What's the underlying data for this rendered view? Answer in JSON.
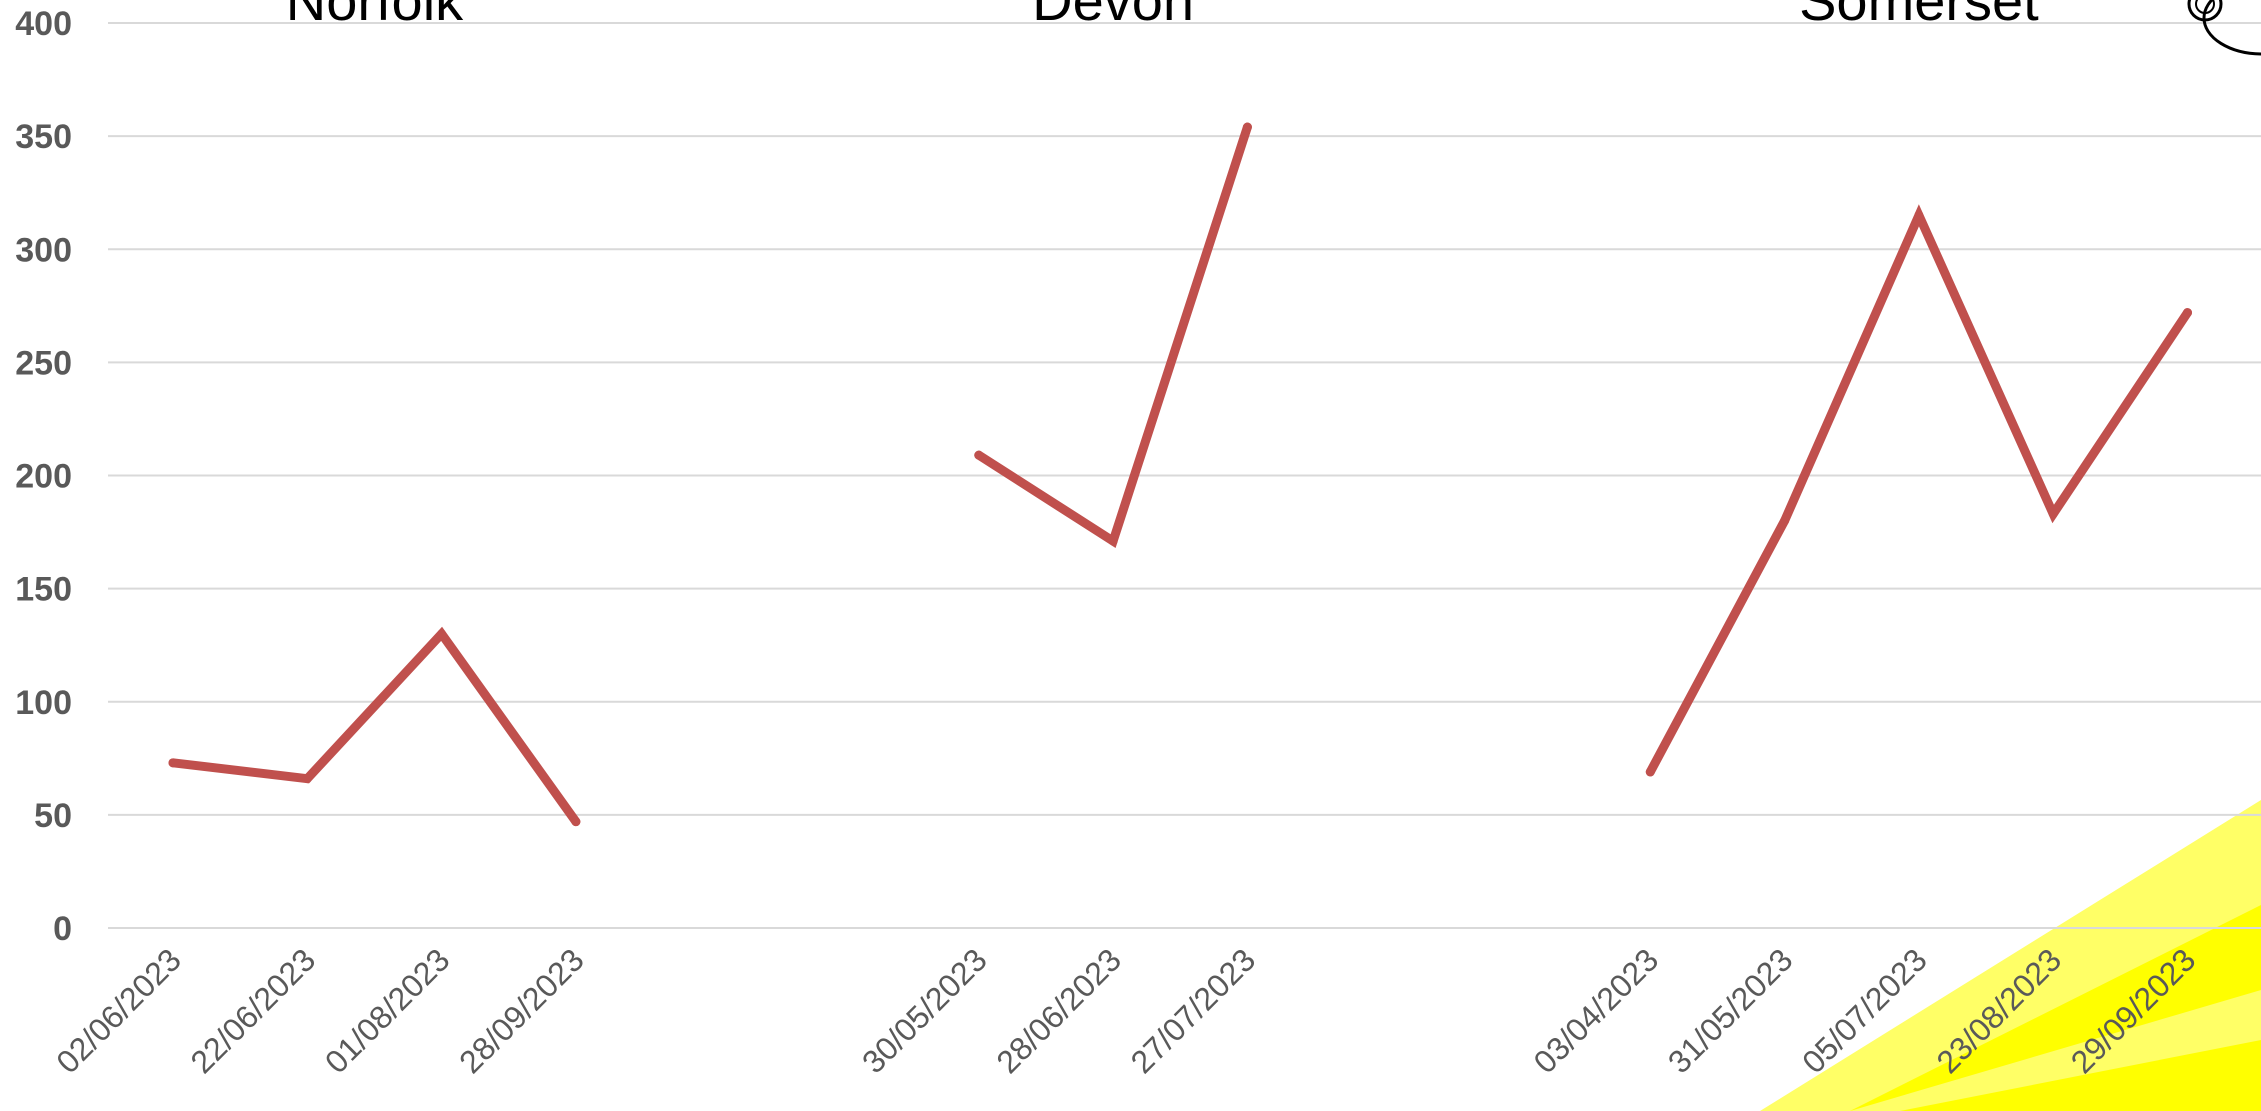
{
  "chart_data": {
    "type": "line",
    "ylim": [
      0,
      400
    ],
    "yticks": [
      0,
      50,
      100,
      150,
      200,
      250,
      300,
      350,
      400
    ],
    "grid": true,
    "legend": "none",
    "line_color": "#c0504d",
    "panels": [
      {
        "title": "Norfolk",
        "x": [
          "02/06/2023",
          "22/06/2023",
          "01/08/2023",
          "28/09/2023"
        ],
        "values": [
          73,
          66,
          130,
          47
        ]
      },
      {
        "title": "Devon",
        "x": [
          "30/05/2023",
          "28/06/2023",
          "27/07/2023"
        ],
        "values": [
          209,
          171,
          354
        ]
      },
      {
        "title": "Somerset",
        "x": [
          "03/04/2023",
          "31/05/2023",
          "05/07/2023",
          "23/08/2023",
          "29/09/2023"
        ],
        "values": [
          69,
          180,
          315,
          183,
          272
        ]
      }
    ]
  }
}
